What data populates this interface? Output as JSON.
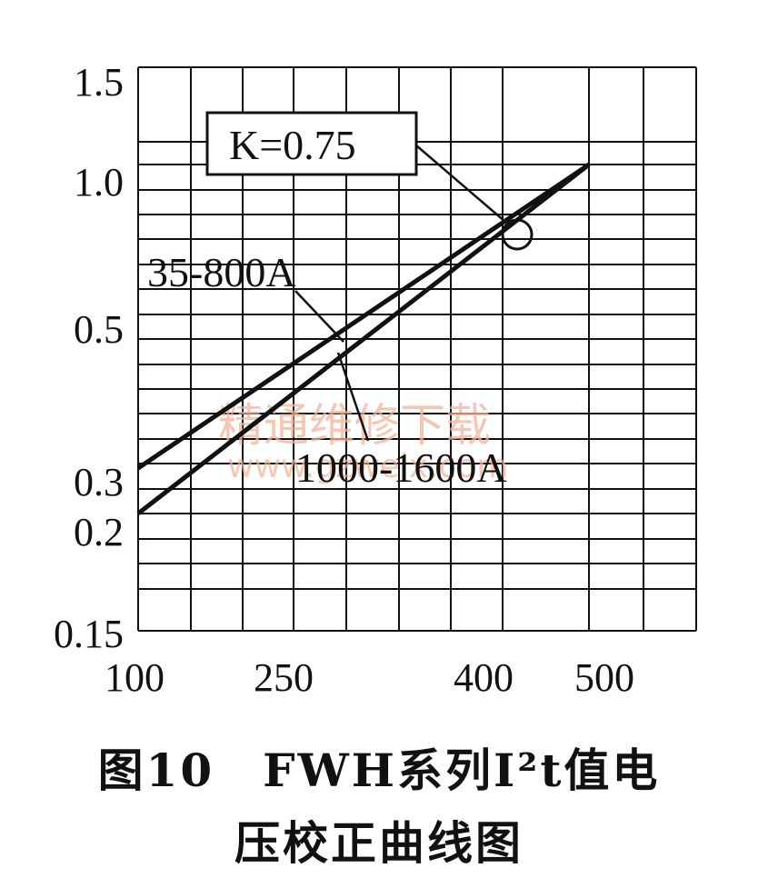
{
  "chart_data": {
    "type": "line",
    "title": "",
    "xlabel": "",
    "ylabel": "",
    "x_ticks": [
      "100",
      "250",
      "400",
      "500"
    ],
    "y_ticks": [
      "1.5",
      "1.0",
      "0.5",
      "0.3",
      "0.2",
      "0.15"
    ],
    "y_scale": "log",
    "ylim": [
      0.15,
      1.5
    ],
    "grid": true,
    "series": [
      {
        "name": "35-800A",
        "x": [
          100,
          500
        ],
        "y": [
          0.3,
          1.0
        ]
      },
      {
        "name": "1000-1600A",
        "x": [
          100,
          500
        ],
        "y": [
          0.2,
          1.0
        ]
      }
    ],
    "annotations": [
      {
        "text": "K=0.75",
        "boxed": true,
        "x": 450,
        "y": 0.75
      }
    ]
  },
  "caption": {
    "line1": "图10　FWH系列I²t值电",
    "line2": "压校正曲线图"
  },
  "watermark": {
    "line1": "精通维修下载",
    "line2": "www.gzweix.com"
  }
}
